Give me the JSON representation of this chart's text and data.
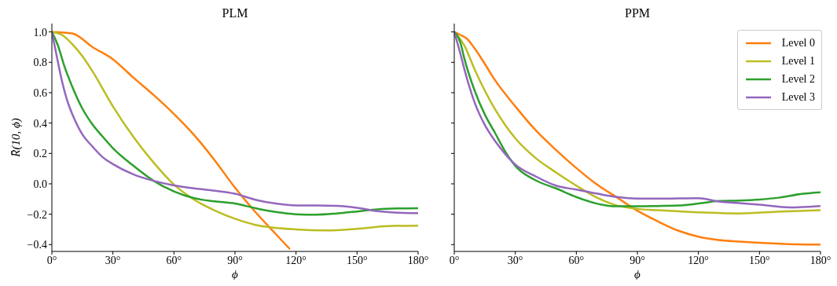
{
  "chart_data": [
    {
      "type": "line",
      "title": "PLM",
      "xlabel": "ϕ",
      "ylabel": "R̄(10, ϕ)",
      "xlim": [
        0,
        180
      ],
      "ylim": [
        -0.445,
        1.055
      ],
      "xticks": [
        {
          "value": 0,
          "label": "0°"
        },
        {
          "value": 30,
          "label": "30°"
        },
        {
          "value": 60,
          "label": "60°"
        },
        {
          "value": 90,
          "label": "90°"
        },
        {
          "value": 120,
          "label": "120°"
        },
        {
          "value": 150,
          "label": "150°"
        },
        {
          "value": 180,
          "label": "180°"
        }
      ],
      "yticks": [
        {
          "value": -0.4,
          "label": "−0.4"
        },
        {
          "value": -0.2,
          "label": "−0.2"
        },
        {
          "value": 0,
          "label": "0.0"
        },
        {
          "value": 0.2,
          "label": "0.2"
        },
        {
          "value": 0.4,
          "label": "0.4"
        },
        {
          "value": 0.6,
          "label": "0.6"
        },
        {
          "value": 0.8,
          "label": "0.8"
        },
        {
          "value": 1,
          "label": "1.0"
        }
      ],
      "grid": false,
      "legend": false,
      "series": [
        {
          "color": "#ff7f0e",
          "x": [
            0,
            10,
            20,
            30,
            40,
            50,
            60,
            70,
            80,
            90,
            100,
            110,
            117
          ],
          "values": [
            1.0,
            0.99,
            0.9,
            0.82,
            0.7,
            0.585,
            0.46,
            0.32,
            0.155,
            -0.025,
            -0.185,
            -0.33,
            -0.43
          ]
        },
        {
          "color": "#bcbd22",
          "x": [
            0,
            5,
            10,
            15,
            20,
            30,
            40,
            50,
            60,
            70,
            80,
            90,
            100,
            120,
            135,
            150,
            165,
            180
          ],
          "values": [
            1.0,
            0.98,
            0.92,
            0.84,
            0.74,
            0.51,
            0.31,
            0.14,
            -0.005,
            -0.105,
            -0.175,
            -0.23,
            -0.27,
            -0.3,
            -0.307,
            -0.296,
            -0.278,
            -0.275
          ]
        },
        {
          "color": "#2ca02c",
          "x": [
            0,
            3,
            6,
            10,
            15,
            20,
            25,
            30,
            40,
            50,
            60,
            70,
            80,
            90,
            100,
            110,
            120,
            130,
            140,
            150,
            160,
            170,
            180
          ],
          "values": [
            1.0,
            0.91,
            0.78,
            0.64,
            0.495,
            0.39,
            0.31,
            0.235,
            0.12,
            0.02,
            -0.05,
            -0.095,
            -0.115,
            -0.13,
            -0.16,
            -0.185,
            -0.2,
            -0.203,
            -0.195,
            -0.182,
            -0.168,
            -0.162,
            -0.16
          ]
        },
        {
          "color": "#9467bd",
          "x": [
            0,
            3,
            5,
            8,
            10,
            15,
            20,
            25,
            30,
            40,
            50,
            60,
            70,
            80,
            90,
            100,
            110,
            120,
            130,
            140,
            150,
            160,
            170,
            180
          ],
          "values": [
            1.0,
            0.8,
            0.675,
            0.53,
            0.46,
            0.325,
            0.245,
            0.175,
            0.13,
            0.063,
            0.02,
            -0.01,
            -0.03,
            -0.045,
            -0.065,
            -0.105,
            -0.13,
            -0.142,
            -0.142,
            -0.145,
            -0.158,
            -0.18,
            -0.19,
            -0.193
          ]
        }
      ]
    },
    {
      "type": "line",
      "title": "PPM",
      "xlabel": "ϕ",
      "xlim": [
        0,
        180
      ],
      "ylim": [
        -0.445,
        1.055
      ],
      "xticks": [
        {
          "value": 0,
          "label": "0°"
        },
        {
          "value": 30,
          "label": "30°"
        },
        {
          "value": 60,
          "label": "60°"
        },
        {
          "value": 90,
          "label": "90°"
        },
        {
          "value": 120,
          "label": "120°"
        },
        {
          "value": 150,
          "label": "150°"
        },
        {
          "value": 180,
          "label": "180°"
        }
      ],
      "yticks": [
        -0.4,
        -0.2,
        0,
        0.2,
        0.4,
        0.6,
        0.8,
        1
      ],
      "tick_labels": "x",
      "grid": false,
      "legend": "top right",
      "series": [
        {
          "name": "Level 0",
          "color": "#ff7f0e",
          "x": [
            0,
            3,
            6,
            10,
            15,
            20,
            30,
            40,
            50,
            60,
            70,
            80,
            90,
            100,
            110,
            120,
            130,
            140,
            150,
            165,
            180
          ],
          "values": [
            1.0,
            0.98,
            0.958,
            0.892,
            0.79,
            0.683,
            0.51,
            0.353,
            0.223,
            0.104,
            -0.003,
            -0.09,
            -0.177,
            -0.247,
            -0.308,
            -0.348,
            -0.37,
            -0.38,
            -0.388,
            -0.397,
            -0.4
          ]
        },
        {
          "name": "Level 1",
          "color": "#bcbd22",
          "x": [
            0,
            5,
            10,
            15,
            20,
            25,
            30,
            40,
            50,
            60,
            70,
            80,
            90,
            100,
            120,
            140,
            160,
            180
          ],
          "values": [
            1.0,
            0.91,
            0.754,
            0.614,
            0.492,
            0.388,
            0.3,
            0.17,
            0.075,
            -0.012,
            -0.09,
            -0.143,
            -0.165,
            -0.174,
            -0.188,
            -0.195,
            -0.183,
            -0.174
          ]
        },
        {
          "name": "Level 2",
          "color": "#2ca02c",
          "x": [
            0,
            3,
            5,
            10,
            15,
            20,
            25,
            30,
            40,
            50,
            60,
            70,
            80,
            90,
            100,
            110,
            120,
            130,
            140,
            150,
            160,
            170,
            180
          ],
          "values": [
            1.0,
            0.93,
            0.823,
            0.614,
            0.457,
            0.336,
            0.214,
            0.118,
            0.023,
            -0.03,
            -0.087,
            -0.13,
            -0.148,
            -0.148,
            -0.146,
            -0.143,
            -0.13,
            -0.113,
            -0.11,
            -0.103,
            -0.09,
            -0.068,
            -0.056
          ]
        },
        {
          "name": "Level 3",
          "color": "#9467bd",
          "x": [
            0,
            3,
            5,
            10,
            15,
            20,
            25,
            30,
            40,
            50,
            60,
            70,
            80,
            90,
            100,
            120,
            130,
            140,
            150,
            165,
            180
          ],
          "values": [
            1.0,
            0.857,
            0.753,
            0.536,
            0.388,
            0.283,
            0.197,
            0.127,
            0.049,
            -0.012,
            -0.038,
            -0.064,
            -0.087,
            -0.097,
            -0.097,
            -0.094,
            -0.117,
            -0.127,
            -0.137,
            -0.155,
            -0.146
          ]
        }
      ]
    }
  ]
}
